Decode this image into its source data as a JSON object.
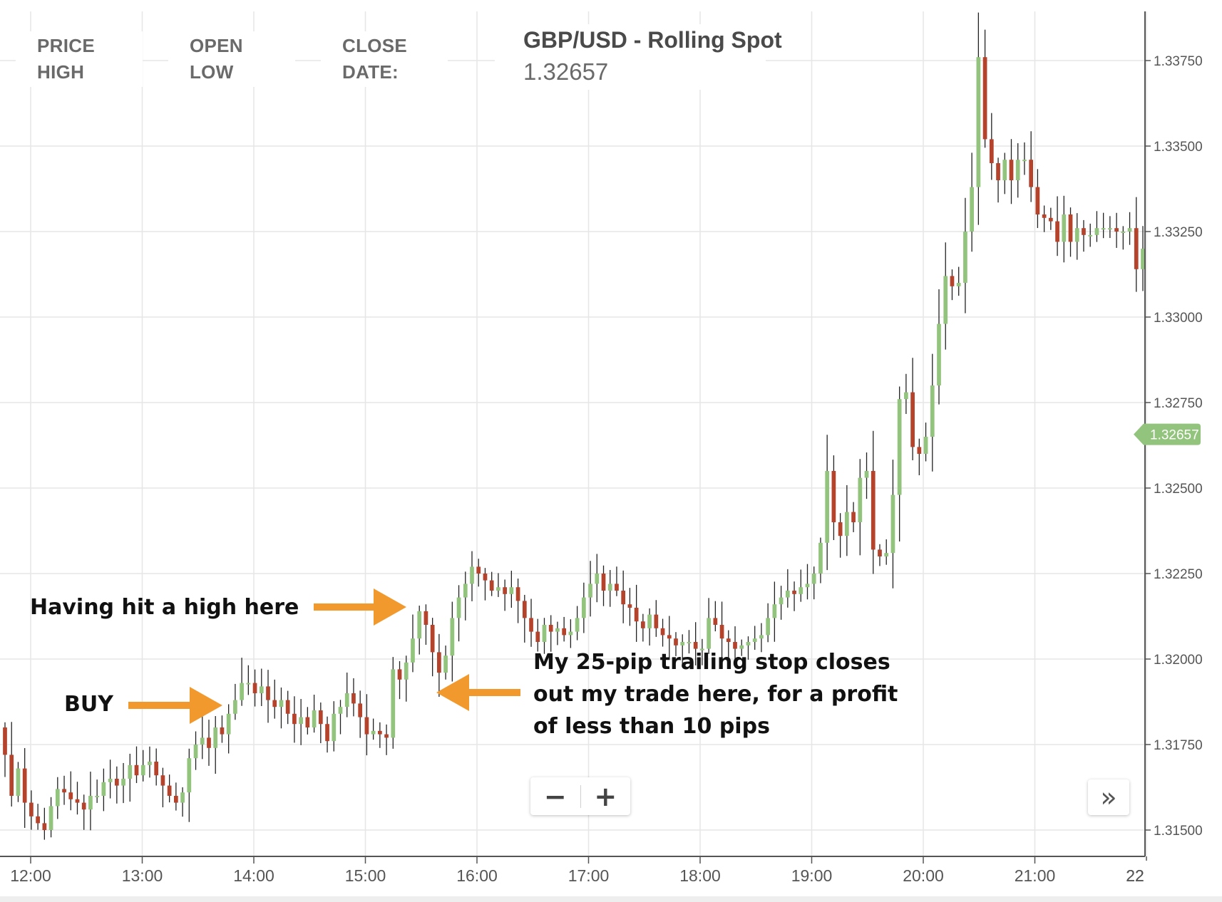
{
  "legend": {
    "price": "PRICE",
    "high": "HIGH",
    "open": "OPEN",
    "low": "LOW",
    "close": "CLOSE",
    "date": "DATE:"
  },
  "symbol": {
    "title": "GBP/USD - Rolling Spot",
    "price": "1.32657"
  },
  "annotations": {
    "high_note": "Having hit a high here",
    "buy_note": "BUY",
    "stop_note_line1": "My 25-pip trailing stop closes",
    "stop_note_line2": "out my trade here, for a profit",
    "stop_note_line3": "of less than 10 pips"
  },
  "controls": {
    "zoom_out": "−",
    "zoom_in": "+",
    "scroll_right": "»"
  },
  "colors": {
    "up": "#93c47d",
    "down": "#b5422b",
    "wick": "#222222",
    "grid": "#e6e6e6",
    "arrow": "#f2992e",
    "price_tag": "#93c47d"
  },
  "chart_data": {
    "type": "candlestick",
    "title": "GBP/USD - Rolling Spot",
    "current_price": "1.32657",
    "x_ticks": [
      "12:00",
      "13:00",
      "14:00",
      "15:00",
      "16:00",
      "17:00",
      "18:00",
      "19:00",
      "20:00",
      "21:00",
      "22:00"
    ],
    "y_ticks": [
      "1.31500",
      "1.31750",
      "1.32000",
      "1.32250",
      "1.32500",
      "1.32750",
      "1.33000",
      "1.33250",
      "1.33500",
      "1.33750"
    ],
    "ylim": [
      1.3145,
      1.3385
    ],
    "grid": true,
    "closes": [
      1.3172,
      1.316,
      1.3168,
      1.3158,
      1.3154,
      1.3152,
      1.315,
      1.3157,
      1.3162,
      1.3161,
      1.3159,
      1.3158,
      1.3156,
      1.316,
      1.316,
      1.3164,
      1.3165,
      1.3163,
      1.3165,
      1.3169,
      1.3166,
      1.3169,
      1.317,
      1.3166,
      1.3163,
      1.316,
      1.3158,
      1.3161,
      1.3171,
      1.3175,
      1.3177,
      1.3174,
      1.318,
      1.3178,
      1.3184,
      1.3188,
      1.3193,
      1.3193,
      1.319,
      1.3192,
      1.3188,
      1.3186,
      1.3188,
      1.3184,
      1.3181,
      1.3183,
      1.318,
      1.3185,
      1.3181,
      1.3176,
      1.3184,
      1.3186,
      1.319,
      1.3187,
      1.3183,
      1.3178,
      1.3179,
      1.3178,
      1.3177,
      1.3197,
      1.3194,
      1.3199,
      1.3206,
      1.3214,
      1.321,
      1.3202,
      1.3196,
      1.3201,
      1.3212,
      1.3218,
      1.3222,
      1.3227,
      1.3225,
      1.3223,
      1.322,
      1.3221,
      1.3219,
      1.3221,
      1.3217,
      1.3212,
      1.3208,
      1.3205,
      1.321,
      1.3208,
      1.3209,
      1.3207,
      1.3208,
      1.3212,
      1.3218,
      1.3222,
      1.3225,
      1.322,
      1.3222,
      1.322,
      1.3216,
      1.3215,
      1.3211,
      1.3209,
      1.3213,
      1.3209,
      1.3207,
      1.3206,
      1.3204,
      1.3205,
      1.3205,
      1.3203,
      1.3203,
      1.3212,
      1.321,
      1.3206,
      1.3205,
      1.3203,
      1.3204,
      1.3205,
      1.3206,
      1.3207,
      1.3212,
      1.3216,
      1.3218,
      1.322,
      1.3219,
      1.3221,
      1.3222,
      1.3225,
      1.3234,
      1.3255,
      1.324,
      1.3236,
      1.3243,
      1.324,
      1.3253,
      1.3255,
      1.3232,
      1.323,
      1.3231,
      1.3248,
      1.3276,
      1.3278,
      1.3262,
      1.326,
      1.3265,
      1.328,
      1.3298,
      1.3312,
      1.3309,
      1.331,
      1.3325,
      1.3338,
      1.3376,
      1.3352,
      1.3345,
      1.334,
      1.3346,
      1.334,
      1.3346,
      1.3346,
      1.3338,
      1.333,
      1.3329,
      1.3328,
      1.3322,
      1.333,
      1.3322,
      1.3326,
      1.3324,
      1.3324,
      1.3326,
      1.3326,
      1.3326,
      1.3325,
      1.3325,
      1.3326,
      1.3314,
      1.332
    ]
  }
}
